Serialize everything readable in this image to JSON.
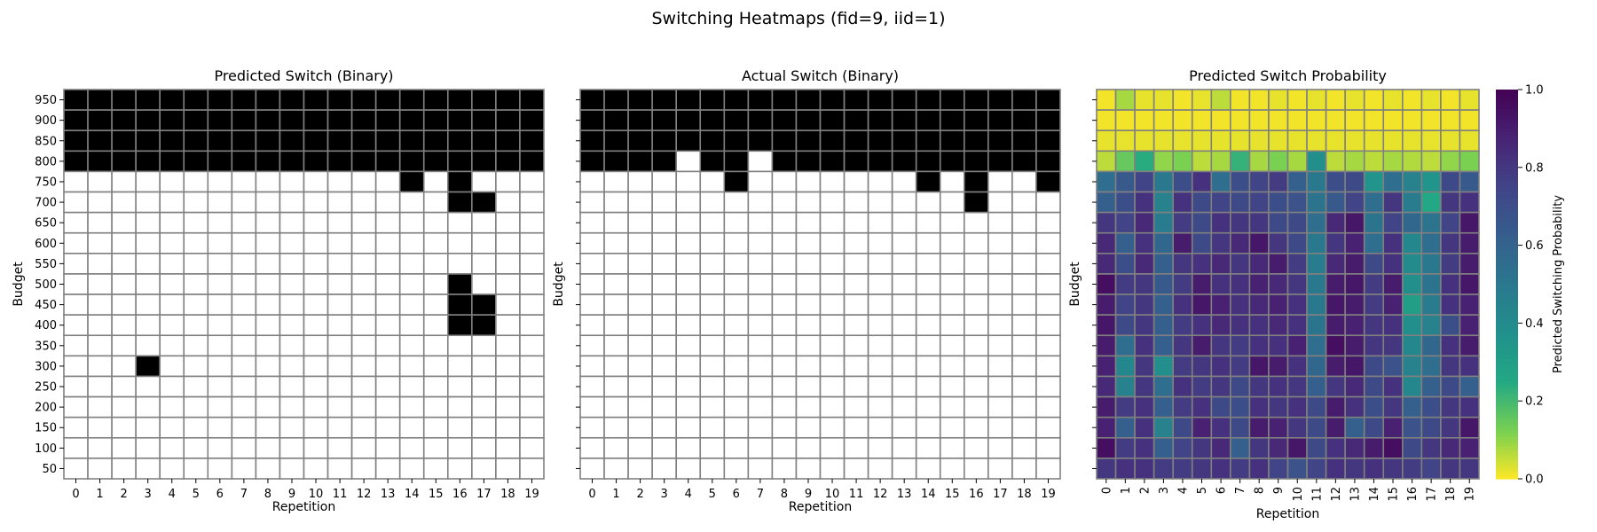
{
  "figure": {
    "suptitle": "Switching Heatmaps (fid=9, iid=1)"
  },
  "chart_data": [
    {
      "type": "heatmap",
      "title": "Predicted Switch (Binary)",
      "xlabel": "Repetition",
      "ylabel": "Budget",
      "x": [
        0,
        1,
        2,
        3,
        4,
        5,
        6,
        7,
        8,
        9,
        10,
        11,
        12,
        13,
        14,
        15,
        16,
        17,
        18,
        19
      ],
      "y": [
        950,
        900,
        850,
        800,
        750,
        700,
        650,
        600,
        550,
        500,
        450,
        400,
        350,
        300,
        250,
        200,
        150,
        100,
        50
      ],
      "colors": {
        "0": "#ffffff",
        "1": "#000000"
      },
      "grid_color": "#808080",
      "ones": [
        [
          950,
          "all"
        ],
        [
          900,
          "all"
        ],
        [
          850,
          "all"
        ],
        [
          800,
          "all"
        ],
        [
          750,
          [
            14,
            16
          ]
        ],
        [
          700,
          [
            16,
            17
          ]
        ],
        [
          500,
          [
            16
          ]
        ],
        [
          450,
          [
            16,
            17
          ]
        ],
        [
          400,
          [
            16,
            17
          ]
        ],
        [
          300,
          [
            3
          ]
        ]
      ]
    },
    {
      "type": "heatmap",
      "title": "Actual Switch (Binary)",
      "xlabel": "Repetition",
      "ylabel": "Budget",
      "x": [
        0,
        1,
        2,
        3,
        4,
        5,
        6,
        7,
        8,
        9,
        10,
        11,
        12,
        13,
        14,
        15,
        16,
        17,
        18,
        19
      ],
      "y": [
        950,
        900,
        850,
        800,
        750,
        700,
        650,
        600,
        550,
        500,
        450,
        400,
        350,
        300,
        250,
        200,
        150,
        100,
        50
      ],
      "colors": {
        "0": "#ffffff",
        "1": "#000000"
      },
      "grid_color": "#808080",
      "ones": [
        [
          950,
          "all"
        ],
        [
          900,
          "all"
        ],
        [
          850,
          "all"
        ],
        [
          800,
          [
            0,
            1,
            2,
            3,
            5,
            6,
            8,
            9,
            10,
            11,
            12,
            13,
            14,
            15,
            16,
            17,
            18,
            19
          ]
        ],
        [
          750,
          [
            6,
            14,
            16,
            19
          ]
        ],
        [
          700,
          [
            16
          ]
        ]
      ]
    },
    {
      "type": "heatmap",
      "title": "Predicted Switch Probability",
      "xlabel": "Repetition",
      "ylabel": "Budget",
      "x": [
        0,
        1,
        2,
        3,
        4,
        5,
        6,
        7,
        8,
        9,
        10,
        11,
        12,
        13,
        14,
        15,
        16,
        17,
        18,
        19
      ],
      "y": [
        950,
        900,
        850,
        800,
        750,
        700,
        650,
        600,
        550,
        500,
        450,
        400,
        350,
        300,
        250,
        200,
        150,
        100,
        50
      ],
      "colormap": "viridis_r",
      "vmin": 0,
      "vmax": 1,
      "colorbar": {
        "label": "Predicted Switching Probability",
        "ticks": [
          "0.0",
          "0.2",
          "0.4",
          "0.6",
          "0.8",
          "1.0"
        ]
      },
      "values": [
        [
          0.01,
          0.08,
          0.02,
          0.02,
          0.01,
          0.02,
          0.06,
          0.01,
          0.01,
          0.02,
          0.01,
          0.02,
          0.01,
          0.02,
          0.01,
          0.02,
          0.01,
          0.02,
          0.01,
          0.02
        ],
        [
          0.01,
          0.01,
          0.01,
          0.01,
          0.01,
          0.01,
          0.01,
          0.01,
          0.01,
          0.01,
          0.01,
          0.01,
          0.01,
          0.01,
          0.01,
          0.01,
          0.01,
          0.01,
          0.01,
          0.01
        ],
        [
          0.02,
          0.02,
          0.02,
          0.02,
          0.02,
          0.02,
          0.02,
          0.02,
          0.02,
          0.02,
          0.02,
          0.02,
          0.02,
          0.02,
          0.02,
          0.02,
          0.02,
          0.02,
          0.02,
          0.02
        ],
        [
          0.06,
          0.15,
          0.24,
          0.1,
          0.12,
          0.06,
          0.08,
          0.22,
          0.08,
          0.12,
          0.08,
          0.38,
          0.06,
          0.08,
          0.06,
          0.08,
          0.07,
          0.06,
          0.1,
          0.12
        ],
        [
          0.55,
          0.65,
          0.75,
          0.5,
          0.7,
          0.82,
          0.55,
          0.7,
          0.75,
          0.78,
          0.62,
          0.5,
          0.7,
          0.72,
          0.35,
          0.55,
          0.45,
          0.35,
          0.72,
          0.65
        ],
        [
          0.62,
          0.7,
          0.82,
          0.45,
          0.82,
          0.72,
          0.75,
          0.72,
          0.75,
          0.7,
          0.68,
          0.52,
          0.65,
          0.75,
          0.55,
          0.8,
          0.48,
          0.25,
          0.8,
          0.82
        ],
        [
          0.8,
          0.75,
          0.85,
          0.48,
          0.78,
          0.72,
          0.82,
          0.8,
          0.8,
          0.72,
          0.72,
          0.55,
          0.85,
          0.92,
          0.52,
          0.75,
          0.58,
          0.52,
          0.75,
          0.92
        ],
        [
          0.85,
          0.62,
          0.82,
          0.58,
          0.9,
          0.72,
          0.8,
          0.85,
          0.92,
          0.8,
          0.72,
          0.5,
          0.8,
          0.88,
          0.55,
          0.82,
          0.42,
          0.55,
          0.8,
          0.9
        ],
        [
          0.85,
          0.7,
          0.85,
          0.62,
          0.8,
          0.82,
          0.85,
          0.8,
          0.85,
          0.9,
          0.78,
          0.48,
          0.85,
          0.9,
          0.72,
          0.82,
          0.4,
          0.5,
          0.78,
          0.9
        ],
        [
          0.95,
          0.78,
          0.8,
          0.65,
          0.78,
          0.9,
          0.82,
          0.82,
          0.88,
          0.85,
          0.8,
          0.5,
          0.9,
          0.92,
          0.78,
          0.9,
          0.38,
          0.52,
          0.82,
          0.92
        ],
        [
          0.9,
          0.75,
          0.8,
          0.62,
          0.82,
          0.92,
          0.88,
          0.82,
          0.85,
          0.88,
          0.82,
          0.5,
          0.92,
          0.9,
          0.78,
          0.88,
          0.3,
          0.48,
          0.82,
          0.88
        ],
        [
          0.92,
          0.72,
          0.8,
          0.62,
          0.78,
          0.82,
          0.85,
          0.82,
          0.82,
          0.85,
          0.82,
          0.52,
          0.9,
          0.88,
          0.8,
          0.82,
          0.38,
          0.45,
          0.7,
          0.88
        ],
        [
          0.9,
          0.55,
          0.82,
          0.62,
          0.8,
          0.9,
          0.8,
          0.78,
          0.82,
          0.82,
          0.88,
          0.55,
          0.95,
          0.9,
          0.8,
          0.8,
          0.42,
          0.58,
          0.82,
          0.9
        ],
        [
          0.88,
          0.42,
          0.8,
          0.38,
          0.78,
          0.8,
          0.82,
          0.78,
          0.92,
          0.9,
          0.82,
          0.58,
          0.9,
          0.92,
          0.72,
          0.68,
          0.45,
          0.55,
          0.8,
          0.82
        ],
        [
          0.85,
          0.45,
          0.8,
          0.55,
          0.82,
          0.78,
          0.8,
          0.72,
          0.8,
          0.82,
          0.8,
          0.62,
          0.8,
          0.85,
          0.72,
          0.82,
          0.42,
          0.62,
          0.72,
          0.62
        ],
        [
          0.9,
          0.78,
          0.82,
          0.62,
          0.78,
          0.82,
          0.72,
          0.7,
          0.82,
          0.8,
          0.82,
          0.72,
          0.9,
          0.82,
          0.7,
          0.8,
          0.62,
          0.7,
          0.8,
          0.82
        ],
        [
          0.88,
          0.62,
          0.82,
          0.45,
          0.72,
          0.88,
          0.82,
          0.72,
          0.9,
          0.88,
          0.8,
          0.72,
          0.9,
          0.62,
          0.72,
          0.88,
          0.68,
          0.72,
          0.8,
          0.92
        ],
        [
          0.95,
          0.78,
          0.82,
          0.62,
          0.75,
          0.8,
          0.85,
          0.62,
          0.8,
          0.85,
          0.92,
          0.72,
          0.82,
          0.85,
          0.9,
          0.95,
          0.72,
          0.8,
          0.85,
          0.88
        ],
        [
          0.8,
          0.82,
          0.82,
          0.78,
          0.78,
          0.8,
          0.82,
          0.78,
          0.82,
          0.75,
          0.68,
          0.75,
          0.82,
          0.8,
          0.82,
          0.8,
          0.78,
          0.75,
          0.8,
          0.8
        ]
      ]
    }
  ]
}
